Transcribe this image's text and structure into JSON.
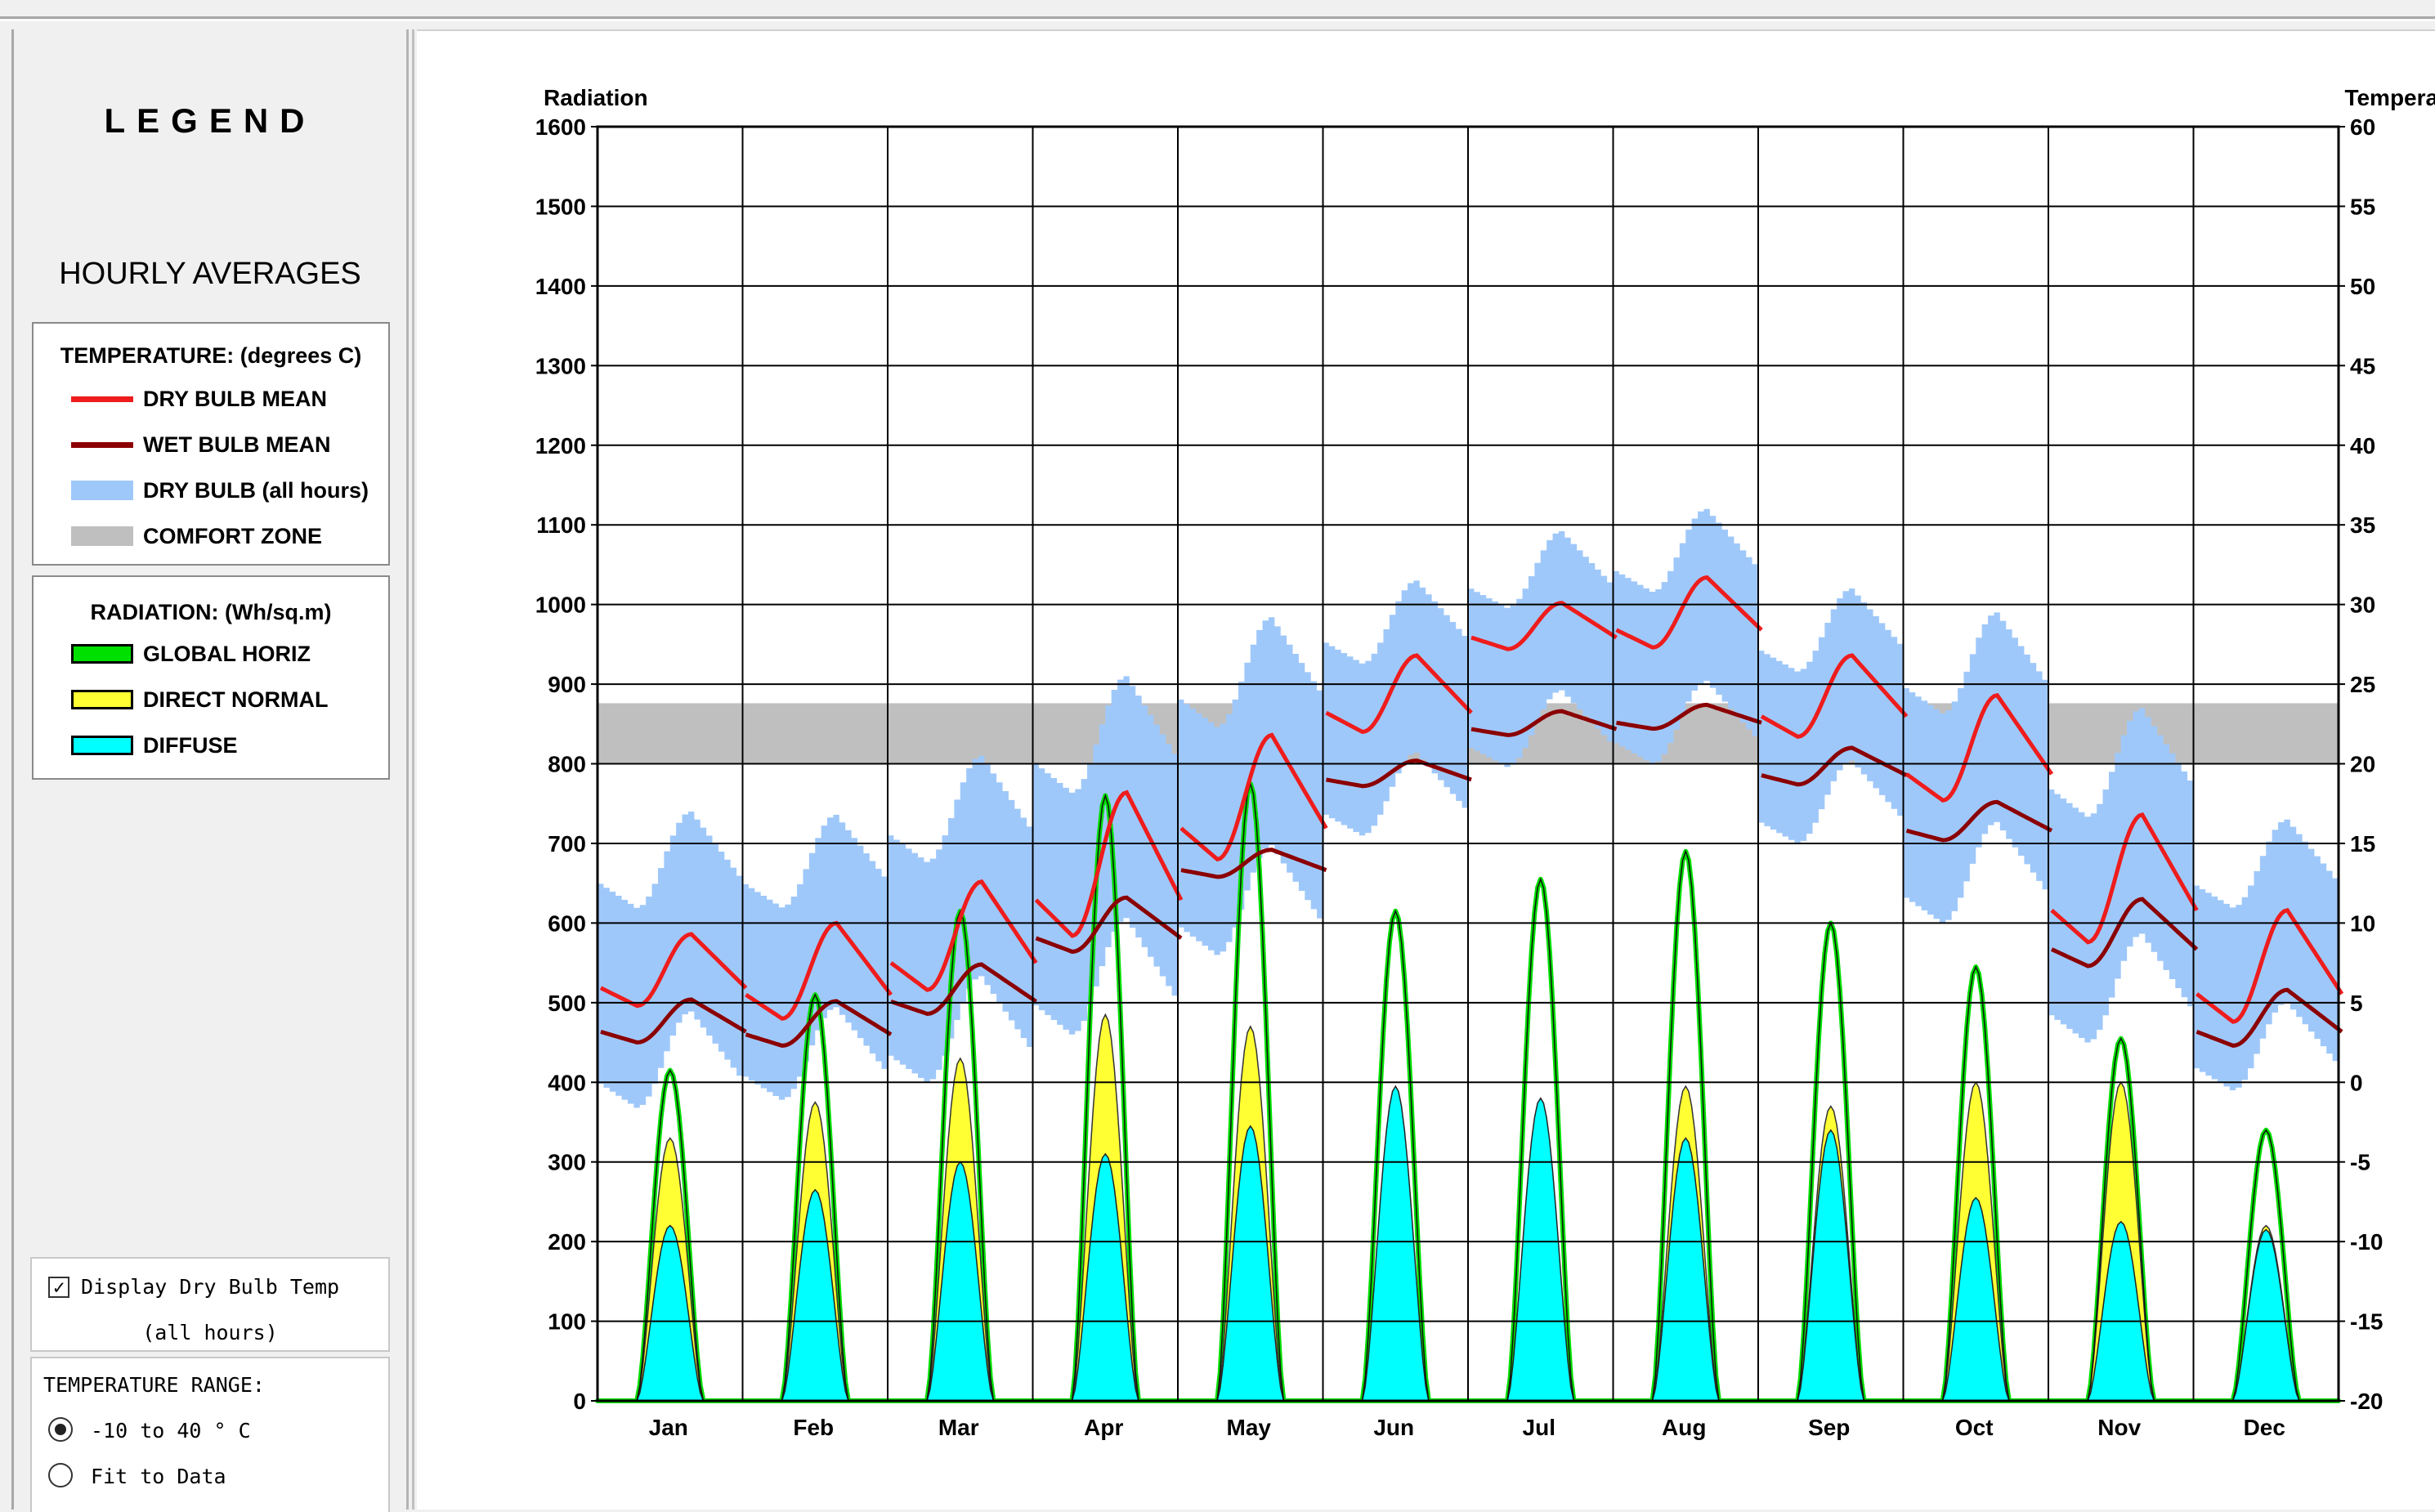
{
  "legend": {
    "title": "LEGEND",
    "subtitle": "HOURLY AVERAGES",
    "temperature": {
      "header": "TEMPERATURE: (degrees C)",
      "items": [
        {
          "label": "DRY BULB MEAN",
          "color": "#ee1c1c"
        },
        {
          "label": "WET BULB MEAN",
          "color": "#8b0000"
        },
        {
          "label": "DRY BULB (all hours)",
          "color": "#9fc8fa"
        },
        {
          "label": "COMFORT ZONE",
          "color": "#bfbfbf"
        }
      ]
    },
    "radiation": {
      "header": "RADIATION: (Wh/sq.m)",
      "items": [
        {
          "label": "GLOBAL HORIZ",
          "color": "#00e000"
        },
        {
          "label": "DIRECT NORMAL",
          "color": "#ffff33"
        },
        {
          "label": "DIFFUSE",
          "color": "#00ffff"
        }
      ]
    }
  },
  "controls": {
    "display_dry_bulb": {
      "label_line1": "Display Dry Bulb Temp",
      "label_line2": "(all hours)",
      "checked": true
    },
    "temperature_range": {
      "label": "TEMPERATURE RANGE:",
      "options": [
        {
          "label": "-10 to 40 ° C",
          "selected": true
        },
        {
          "label": "Fit to Data",
          "selected": false
        }
      ]
    }
  },
  "chart_data": {
    "type": "line",
    "left_axis_label": "Radiation",
    "right_axis_label": "Temperature",
    "left_ticks": [
      "1600",
      "1500",
      "1400",
      "1300",
      "1200",
      "1100",
      "1000",
      "900",
      "800",
      "700",
      "600",
      "500",
      "400",
      "300",
      "200",
      "100",
      "0"
    ],
    "right_ticks": [
      "60",
      "55",
      "50",
      "45",
      "40",
      "35",
      "30",
      "25",
      "20",
      "15",
      "10",
      "5",
      "0",
      "-5",
      "-10",
      "-15",
      "-20"
    ],
    "radiation_range": [
      0,
      1600
    ],
    "temperature_range": [
      -20,
      60
    ],
    "comfort_zone": [
      20,
      23.8
    ],
    "months": [
      "Jan",
      "Feb",
      "Mar",
      "Apr",
      "May",
      "Jun",
      "Jul",
      "Aug",
      "Sep",
      "Oct",
      "Nov",
      "Dec"
    ],
    "series": [
      {
        "name": "GLOBAL HORIZ",
        "peak_values": [
          415,
          510,
          615,
          760,
          775,
          615,
          655,
          690,
          600,
          545,
          455,
          340
        ]
      },
      {
        "name": "DIRECT NORMAL",
        "peak_values": [
          330,
          375,
          430,
          485,
          470,
          250,
          345,
          395,
          370,
          400,
          400,
          220
        ]
      },
      {
        "name": "DIFFUSE",
        "peak_values": [
          220,
          265,
          300,
          310,
          345,
          395,
          380,
          330,
          340,
          255,
          225,
          215
        ]
      },
      {
        "name": "DRY BULB MEAN",
        "daily_min": [
          4.8,
          4.0,
          5.8,
          9.2,
          14.0,
          22.0,
          27.2,
          27.3,
          21.7,
          17.7,
          8.8,
          3.8
        ],
        "daily_max": [
          9.3,
          10.0,
          12.6,
          18.2,
          21.8,
          26.8,
          30.1,
          31.7,
          26.8,
          24.3,
          16.8,
          10.8
        ]
      },
      {
        "name": "WET BULB MEAN",
        "daily_min": [
          2.5,
          2.3,
          4.3,
          8.2,
          12.9,
          18.6,
          21.8,
          22.2,
          18.7,
          15.2,
          7.3,
          2.3
        ],
        "daily_max": [
          5.2,
          5.1,
          7.4,
          11.6,
          14.6,
          20.2,
          23.3,
          23.7,
          21.0,
          17.6,
          11.5,
          5.8
        ]
      },
      {
        "name": "DRY BULB (all hours)",
        "min": [
          -1.6,
          -1.1,
          0.0,
          3.0,
          8.0,
          15.5,
          19.8,
          20.0,
          15.0,
          10.0,
          2.5,
          -0.5
        ],
        "max": [
          17.0,
          16.8,
          20.5,
          25.5,
          29.2,
          31.5,
          34.6,
          36.0,
          31.0,
          29.5,
          23.5,
          16.5
        ]
      }
    ]
  }
}
